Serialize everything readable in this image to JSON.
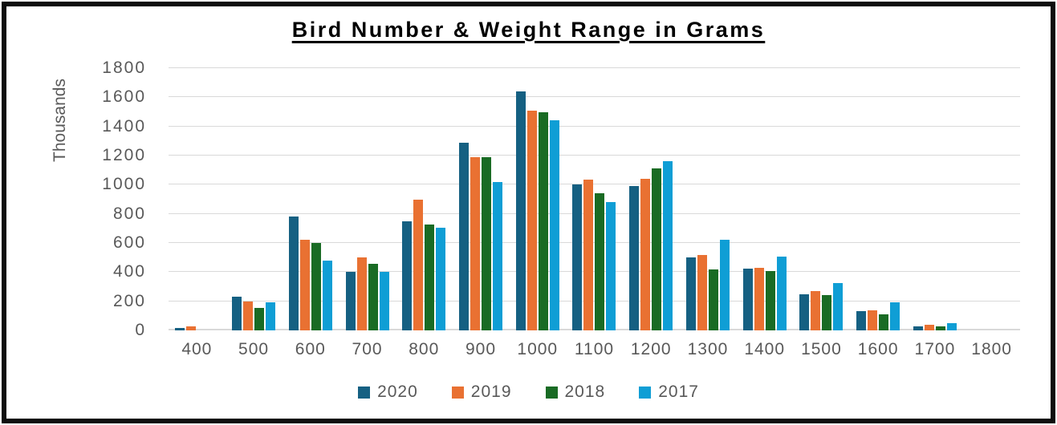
{
  "window": {
    "background_color": "#FFFFFF",
    "border_color": "#0D0D0D"
  },
  "chart_data": {
    "type": "bar",
    "title": "Bird Number & Weight Range in Grams",
    "ylabel": "Thousands",
    "xlabel": "",
    "ylim": [
      0,
      1800
    ],
    "ytick_step": 200,
    "grid": true,
    "gridline_color": "#D9D9D9",
    "axis_text_color": "#595959",
    "legend_position": "bottom",
    "categories": [
      "400",
      "500",
      "600",
      "700",
      "800",
      "900",
      "1000",
      "1100",
      "1200",
      "1300",
      "1400",
      "1500",
      "1600",
      "1700",
      "1800"
    ],
    "series": [
      {
        "name": "2020",
        "color": "#156082",
        "values": [
          15,
          230,
          780,
          400,
          750,
          1290,
          1640,
          1000,
          990,
          500,
          425,
          250,
          130,
          30,
          0
        ]
      },
      {
        "name": "2019",
        "color": "#E97132",
        "values": [
          30,
          200,
          620,
          500,
          895,
          1190,
          1510,
          1035,
          1040,
          520,
          430,
          270,
          135,
          40,
          0
        ]
      },
      {
        "name": "2018",
        "color": "#196B24",
        "values": [
          0,
          155,
          600,
          455,
          725,
          1190,
          1500,
          940,
          1110,
          420,
          405,
          240,
          110,
          25,
          0
        ]
      },
      {
        "name": "2017",
        "color": "#0F9ED5",
        "values": [
          0,
          190,
          480,
          400,
          705,
          1020,
          1440,
          880,
          1160,
          620,
          505,
          325,
          195,
          50,
          0
        ]
      }
    ]
  }
}
